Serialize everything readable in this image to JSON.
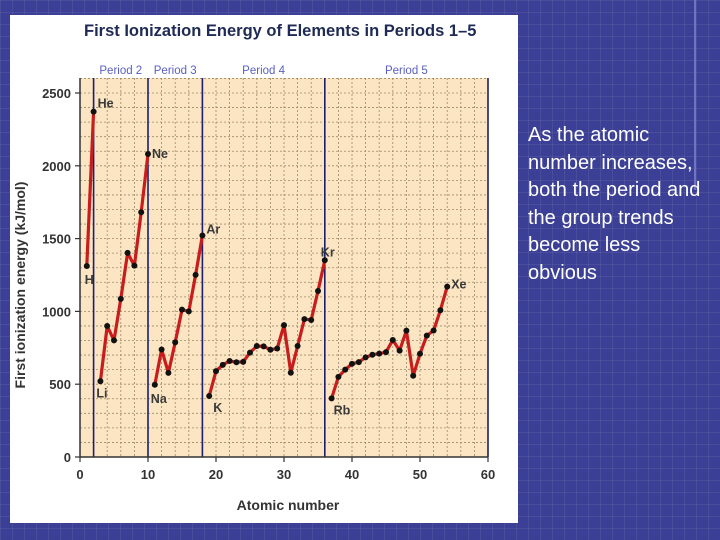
{
  "caption": "As the atomic number increases, both the period and the group trends become less obvious",
  "colors": {
    "plot_bg": "#fbe5c2",
    "line": "#c81d1d",
    "marker": "#111111",
    "period_line": "#1a1f70",
    "period_label": "#5a5fc0"
  },
  "chart_data": {
    "type": "line",
    "title": "First Ionization Energy of Elements in Periods 1–5",
    "xlabel": "Atomic number",
    "ylabel": "First ionization energy (kJ/mol)",
    "xlim": [
      0,
      60
    ],
    "ylim": [
      0,
      2500
    ],
    "xticks": [
      0,
      10,
      20,
      30,
      40,
      50,
      60
    ],
    "yticks": [
      0,
      500,
      1000,
      1500,
      2000,
      2500
    ],
    "grid": true,
    "period_boundaries": [
      2,
      10,
      18,
      36
    ],
    "period_labels": [
      {
        "label": "Period 2",
        "x": 6
      },
      {
        "label": "Period 3",
        "x": 14
      },
      {
        "label": "Period 4",
        "x": 27
      },
      {
        "label": "Period 5",
        "x": 48
      }
    ],
    "segments": [
      {
        "x": [
          1,
          2
        ],
        "y": [
          1312,
          2372
        ]
      },
      {
        "x": [
          3,
          4,
          5,
          6,
          7,
          8,
          9,
          10
        ],
        "y": [
          520,
          900,
          801,
          1086,
          1402,
          1314,
          1681,
          2081
        ]
      },
      {
        "x": [
          11,
          12,
          13,
          14,
          15,
          16,
          17,
          18
        ],
        "y": [
          496,
          738,
          578,
          787,
          1012,
          1000,
          1251,
          1521
        ]
      },
      {
        "x": [
          19,
          20,
          21,
          22,
          23,
          24,
          25,
          26,
          27,
          28,
          29,
          30,
          31,
          32,
          33,
          34,
          35,
          36
        ],
        "y": [
          419,
          590,
          633,
          659,
          651,
          653,
          717,
          762,
          760,
          737,
          745,
          906,
          579,
          762,
          947,
          941,
          1140,
          1351
        ]
      },
      {
        "x": [
          37,
          38,
          39,
          40,
          41,
          42,
          43,
          44,
          45,
          46,
          47,
          48,
          49,
          50,
          51,
          52,
          53,
          54
        ],
        "y": [
          403,
          550,
          600,
          640,
          652,
          684,
          702,
          710,
          720,
          804,
          731,
          868,
          558,
          709,
          834,
          869,
          1008,
          1170
        ]
      }
    ],
    "annotations": [
      {
        "label": "He",
        "x": 2,
        "y": 2372
      },
      {
        "label": "Ne",
        "x": 10,
        "y": 2081
      },
      {
        "label": "Ar",
        "x": 18,
        "y": 1521
      },
      {
        "label": "Kr",
        "x": 36,
        "y": 1351
      },
      {
        "label": "Xe",
        "x": 54,
        "y": 1170
      },
      {
        "label": "H",
        "x": 1,
        "y": 1312
      },
      {
        "label": "Li",
        "x": 3,
        "y": 520
      },
      {
        "label": "Na",
        "x": 11,
        "y": 496
      },
      {
        "label": "K",
        "x": 19,
        "y": 419
      },
      {
        "label": "Rb",
        "x": 37,
        "y": 403
      }
    ]
  }
}
